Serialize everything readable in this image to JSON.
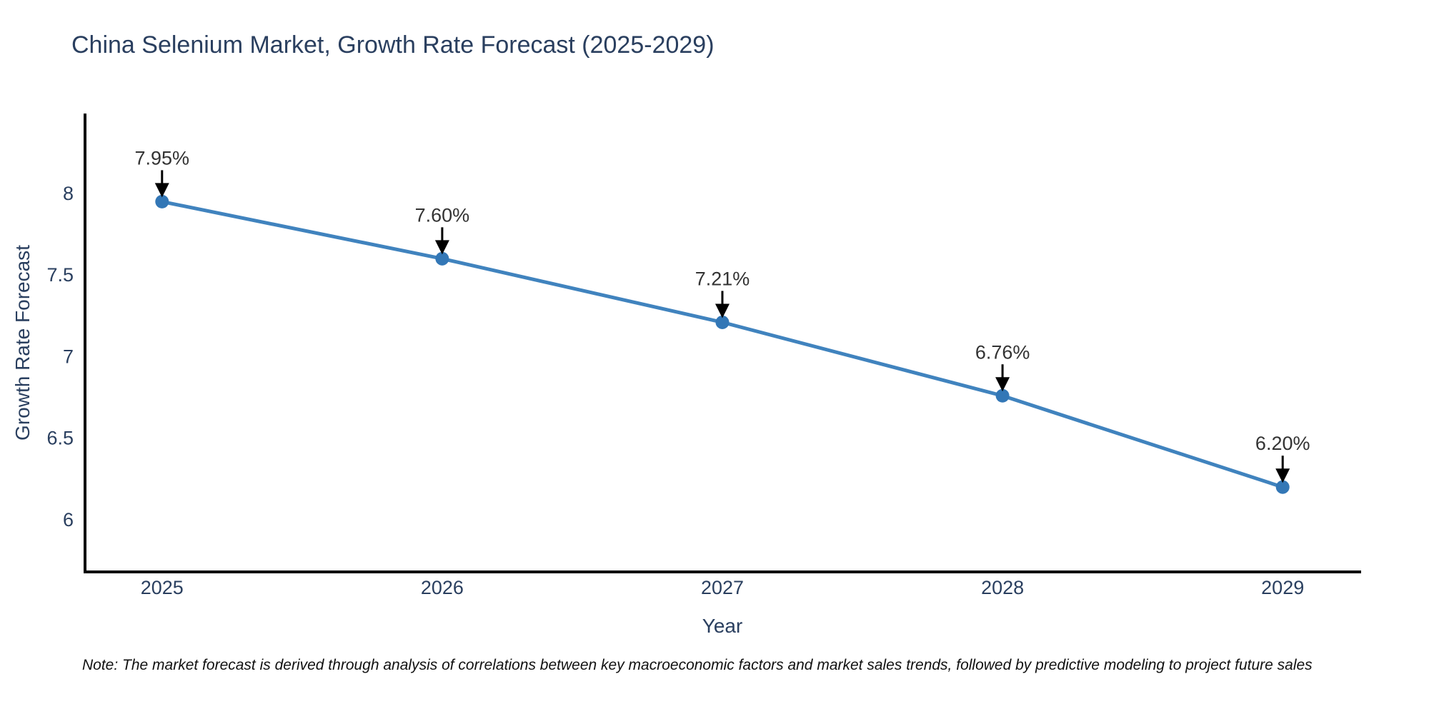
{
  "page": {
    "background": "#ffffff"
  },
  "title": "China Selenium Market, Growth Rate Forecast (2025-2029)",
  "note": "Note: The market forecast is derived through analysis of correlations between key macroeconomic factors and market sales trends, followed by predictive modeling to project future sales",
  "chart_data": {
    "type": "line",
    "title": "China Selenium Market, Growth Rate Forecast (2025-2029)",
    "xlabel": "Year",
    "ylabel": "Growth Rate Forecast",
    "x": [
      2025,
      2026,
      2027,
      2028,
      2029
    ],
    "series": [
      {
        "name": "Growth Rate Forecast",
        "values": [
          7.95,
          7.6,
          7.21,
          6.76,
          6.2
        ],
        "labels": [
          "7.95%",
          "7.60%",
          "7.21%",
          "6.76%",
          "6.20%"
        ]
      }
    ],
    "xtick_labels": [
      "2025",
      "2026",
      "2027",
      "2028",
      "2029"
    ],
    "yticks": [
      6,
      6.5,
      7,
      7.5,
      8
    ],
    "ytick_labels": [
      "6",
      "6.5",
      "7",
      "7.5",
      "8"
    ],
    "xlim": [
      2024.72,
      2029.28
    ],
    "ylim": [
      5.68,
      8.49
    ],
    "grid": false,
    "legend": false,
    "annotation_arrows": true,
    "colors": {
      "line": "#4083be",
      "marker": "#3377b6",
      "arrow": "#000000",
      "axis_spine": "#000000",
      "title_text": "#2a3f5f",
      "tick_text": "#2a3f5f",
      "label_text": "#333333"
    }
  }
}
